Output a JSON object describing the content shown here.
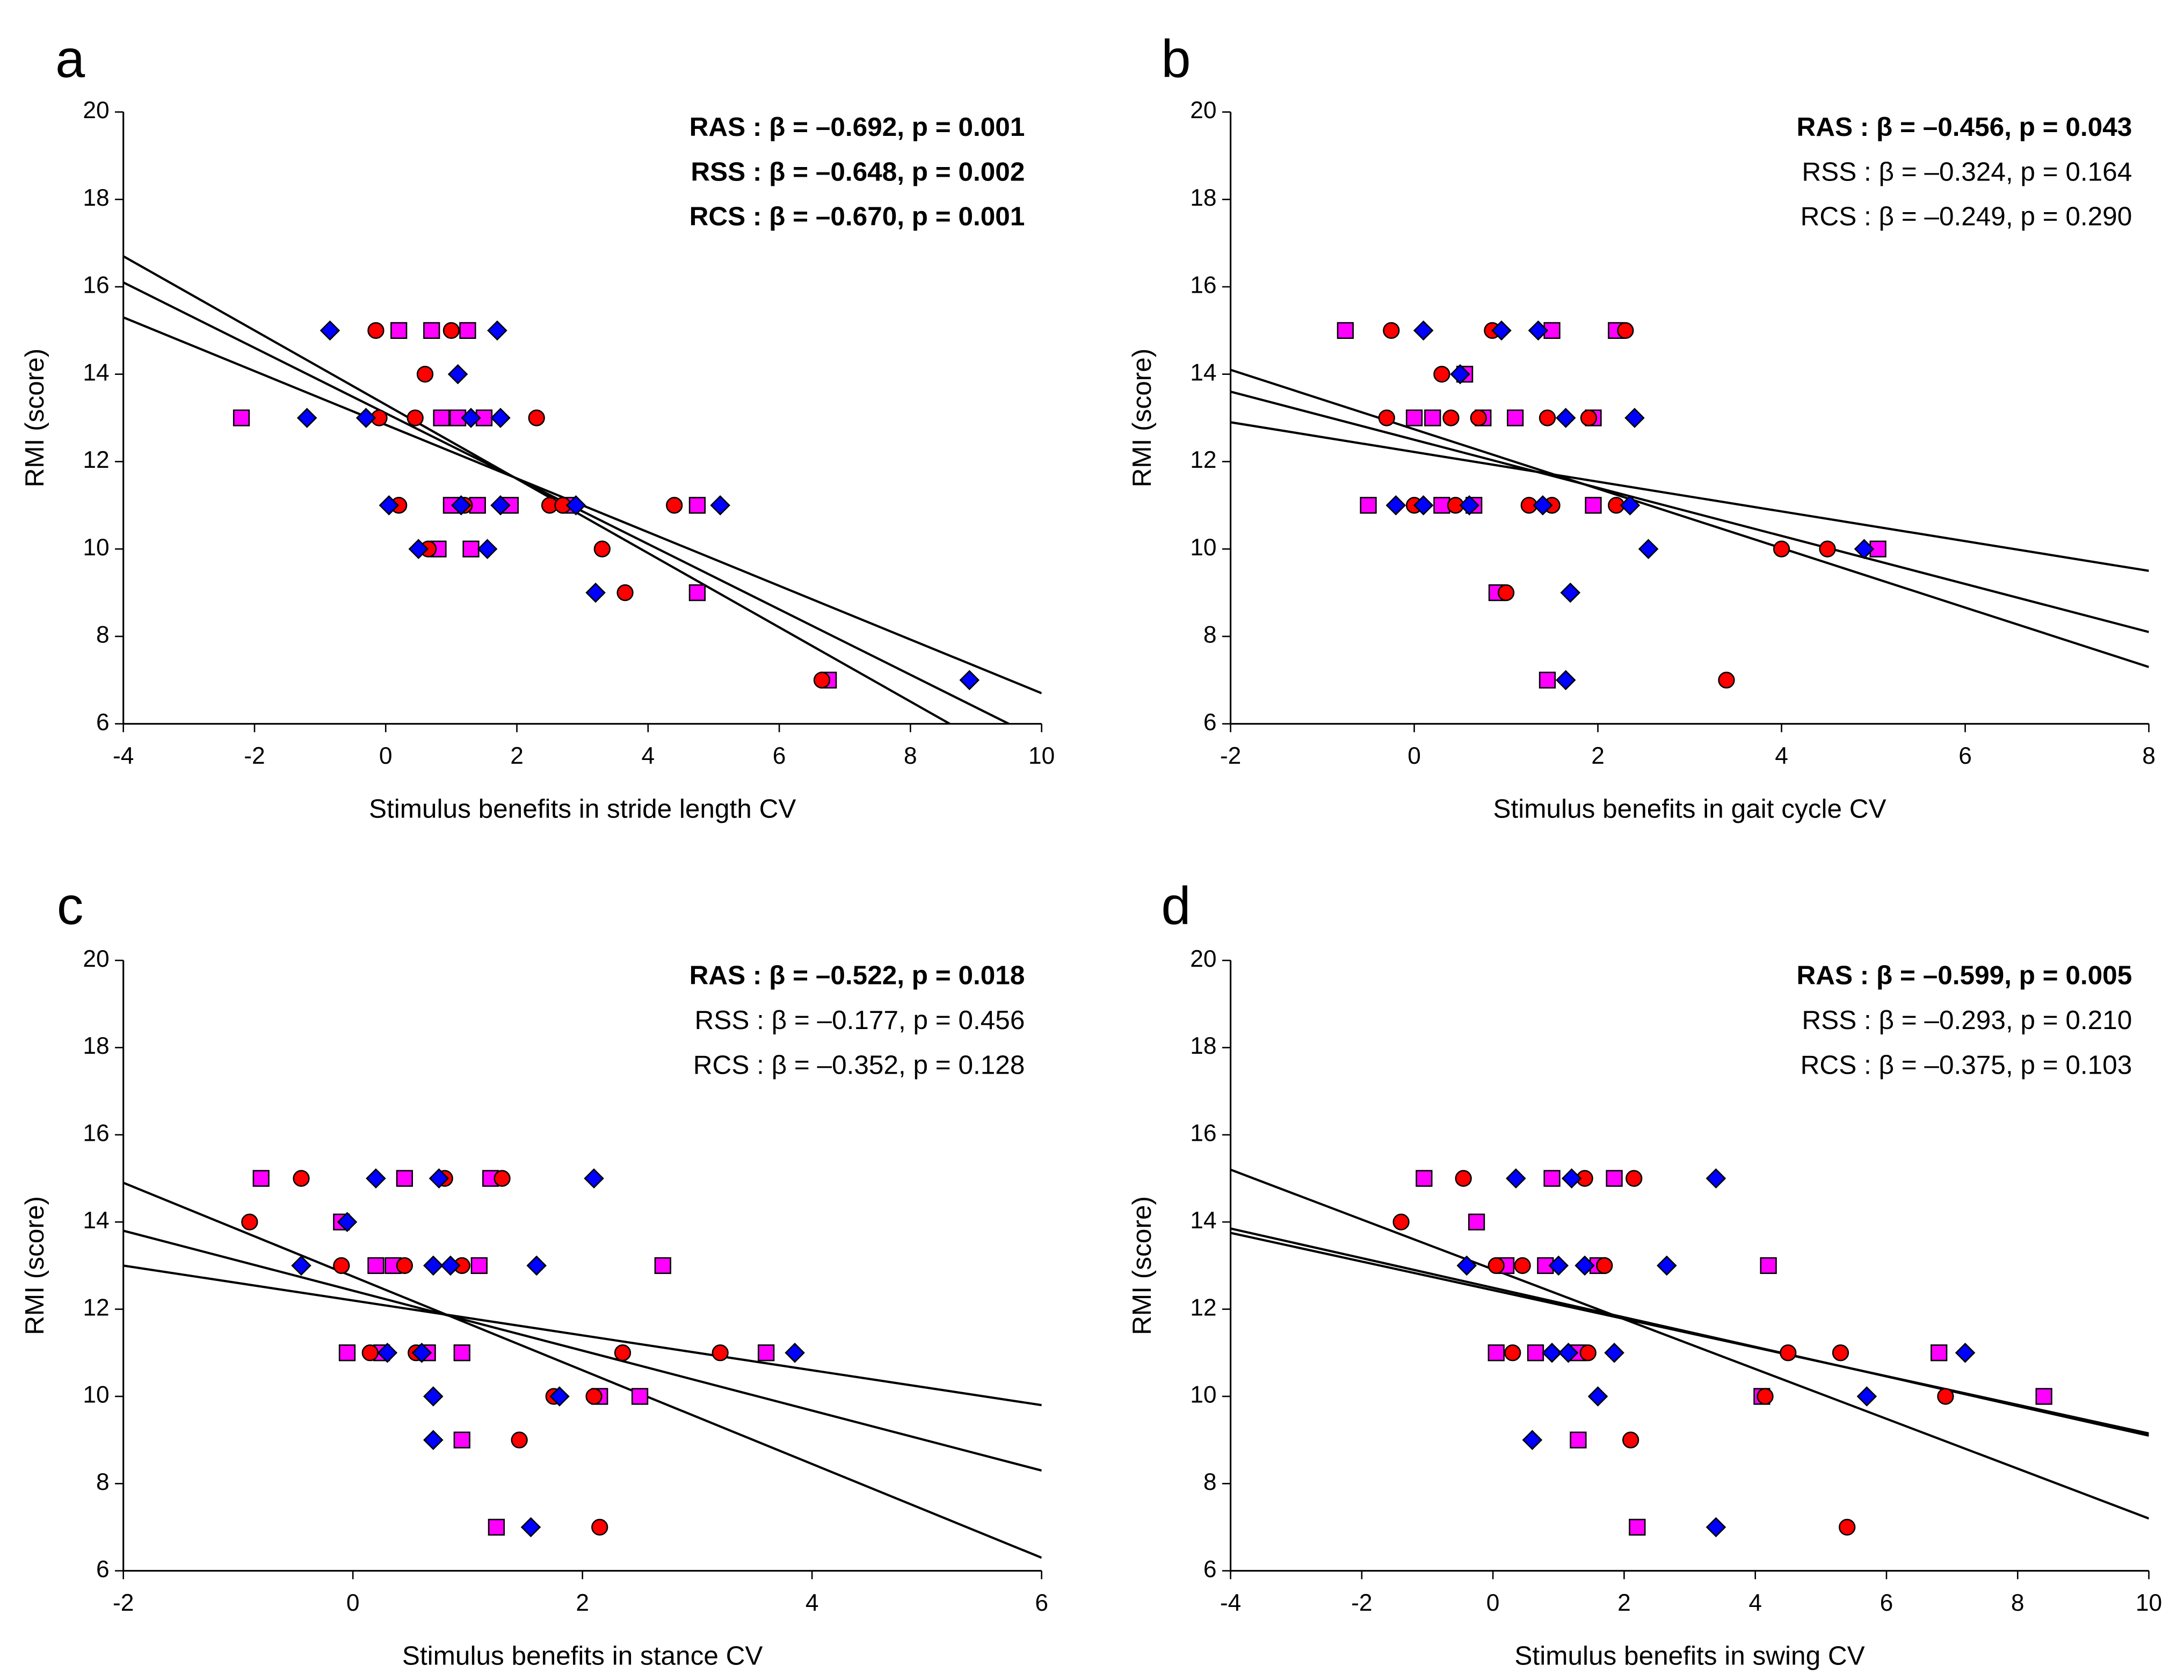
{
  "chart_data": [
    {
      "type": "scatter",
      "panel_label": "a",
      "xlabel": "Stimulus benefits in stride length CV",
      "ylabel": "RMI (score)",
      "xlim": [
        -4,
        10
      ],
      "xticks": [
        -4,
        -2,
        0,
        2,
        4,
        6,
        8,
        10
      ],
      "ylim": [
        6,
        20
      ],
      "yticks": [
        6,
        8,
        10,
        12,
        14,
        16,
        18,
        20
      ],
      "annotations": [
        {
          "text": "RAS : β  = –0.692, p = 0.001",
          "bold": true
        },
        {
          "text": "RSS : β  = –0.648, p = 0.002",
          "bold": true
        },
        {
          "text": "RCS : β  = –0.670, p = 0.001",
          "bold": true
        }
      ],
      "series": [
        {
          "color": "#ff00ff",
          "marker": "square",
          "x": [
            0.2,
            0.7,
            1.25,
            -2.2,
            0.85,
            1.1,
            1.5,
            1.0,
            1.4,
            1.9,
            2.8,
            4.75,
            0.8,
            1.3,
            4.75,
            6.75
          ],
          "values": [
            15,
            15,
            15,
            13,
            13,
            13,
            13,
            11,
            11,
            11,
            11,
            11,
            10,
            10,
            9,
            7
          ]
        },
        {
          "color": "#ff0000",
          "marker": "circle",
          "x": [
            -0.15,
            1.0,
            0.6,
            -0.1,
            0.45,
            2.3,
            0.2,
            1.2,
            2.5,
            2.7,
            4.4,
            0.65,
            3.3,
            3.65,
            6.65
          ],
          "values": [
            15,
            15,
            14,
            13,
            13,
            13,
            11,
            11,
            11,
            11,
            11,
            10,
            10,
            9,
            7
          ]
        },
        {
          "color": "#0000ff",
          "marker": "diamond",
          "x": [
            -0.85,
            1.7,
            1.1,
            -1.2,
            -0.3,
            1.75,
            1.3,
            0.05,
            1.15,
            1.75,
            2.9,
            5.1,
            0.5,
            1.55,
            3.2,
            8.9
          ],
          "values": [
            15,
            15,
            14,
            13,
            13,
            13,
            13,
            11,
            11,
            11,
            11,
            11,
            10,
            10,
            9,
            7
          ]
        }
      ],
      "fit_lines": [
        {
          "x": [
            -4,
            8.6
          ],
          "y": [
            16.7,
            6
          ]
        },
        {
          "x": [
            -4,
            9.5
          ],
          "y": [
            16.1,
            6
          ]
        },
        {
          "x": [
            -4,
            10
          ],
          "y": [
            15.3,
            6.7
          ]
        }
      ]
    },
    {
      "type": "scatter",
      "panel_label": "b",
      "xlabel": "Stimulus benefits in gait cycle CV",
      "ylabel": "RMI (score)",
      "xlim": [
        -2,
        8
      ],
      "xticks": [
        -2,
        0,
        2,
        4,
        6,
        8
      ],
      "ylim": [
        6,
        20
      ],
      "yticks": [
        6,
        8,
        10,
        12,
        14,
        16,
        18,
        20
      ],
      "annotations": [
        {
          "text": "RAS : β  = –0.456, p = 0.043",
          "bold": true
        },
        {
          "text": "RSS : β  = –0.324, p = 0.164",
          "bold": false
        },
        {
          "text": "RCS : β  = –0.249, p = 0.290",
          "bold": false
        }
      ],
      "series": [
        {
          "color": "#ff00ff",
          "marker": "square",
          "x": [
            -0.75,
            1.5,
            2.2,
            0.55,
            0.0,
            0.2,
            0.75,
            1.1,
            1.95,
            -0.5,
            0.3,
            0.65,
            1.95,
            5.05,
            0.9,
            1.45
          ],
          "values": [
            15,
            15,
            15,
            14,
            13,
            13,
            13,
            13,
            13,
            11,
            11,
            11,
            11,
            10,
            9,
            7
          ]
        },
        {
          "color": "#ff0000",
          "marker": "circle",
          "x": [
            -0.25,
            0.85,
            2.3,
            0.3,
            -0.3,
            0.4,
            0.7,
            1.45,
            1.9,
            0.0,
            0.45,
            1.25,
            1.5,
            2.2,
            4.0,
            4.5,
            1.0,
            3.4
          ],
          "values": [
            15,
            15,
            15,
            14,
            13,
            13,
            13,
            13,
            13,
            11,
            11,
            11,
            11,
            11,
            10,
            10,
            9,
            7
          ]
        },
        {
          "color": "#0000ff",
          "marker": "diamond",
          "x": [
            0.1,
            0.95,
            1.35,
            0.5,
            1.65,
            2.4,
            -0.2,
            0.1,
            0.6,
            1.4,
            2.35,
            2.55,
            4.9,
            1.7,
            1.65
          ],
          "values": [
            15,
            15,
            15,
            14,
            13,
            13,
            11,
            11,
            11,
            11,
            11,
            10,
            10,
            9,
            7
          ]
        }
      ],
      "fit_lines": [
        {
          "x": [
            -2,
            8
          ],
          "y": [
            14.1,
            7.3
          ]
        },
        {
          "x": [
            -2,
            8
          ],
          "y": [
            13.6,
            8.1
          ]
        },
        {
          "x": [
            -2,
            8
          ],
          "y": [
            12.9,
            9.5
          ]
        }
      ]
    },
    {
      "type": "scatter",
      "panel_label": "c",
      "xlabel": "Stimulus benefits in stance CV",
      "ylabel": "RMI (score)",
      "xlim": [
        -2,
        6
      ],
      "xticks": [
        -2,
        0,
        2,
        4,
        6
      ],
      "ylim": [
        6,
        20
      ],
      "yticks": [
        6,
        8,
        10,
        12,
        14,
        16,
        18,
        20
      ],
      "annotations": [
        {
          "text": "RAS : β  = –0.522, p = 0.018",
          "bold": true
        },
        {
          "text": "RSS : β  = –0.177, p = 0.456",
          "bold": false
        },
        {
          "text": "RCS : β  = –0.352, p = 0.128",
          "bold": false
        }
      ],
      "series": [
        {
          "color": "#ff00ff",
          "marker": "square",
          "x": [
            -0.8,
            0.45,
            1.2,
            -0.1,
            0.2,
            0.35,
            1.1,
            2.7,
            -0.05,
            0.25,
            0.65,
            0.95,
            3.6,
            2.15,
            2.5,
            0.95,
            1.25
          ],
          "values": [
            15,
            15,
            15,
            14,
            13,
            13,
            13,
            13,
            11,
            11,
            11,
            11,
            11,
            10,
            10,
            9,
            7
          ]
        },
        {
          "color": "#ff0000",
          "marker": "circle",
          "x": [
            -0.45,
            0.8,
            1.3,
            -0.9,
            -0.1,
            0.45,
            0.95,
            0.15,
            0.55,
            2.35,
            3.2,
            1.75,
            2.1,
            1.45,
            2.15
          ],
          "values": [
            15,
            15,
            15,
            14,
            13,
            13,
            13,
            11,
            11,
            11,
            11,
            10,
            10,
            9,
            7
          ]
        },
        {
          "color": "#0000ff",
          "marker": "diamond",
          "x": [
            0.2,
            0.75,
            2.1,
            -0.05,
            -0.45,
            0.7,
            0.85,
            1.6,
            0.3,
            0.6,
            3.85,
            0.7,
            1.8,
            0.7,
            1.55
          ],
          "values": [
            15,
            15,
            15,
            14,
            13,
            13,
            13,
            13,
            11,
            11,
            11,
            10,
            10,
            9,
            7
          ]
        }
      ],
      "fit_lines": [
        {
          "x": [
            -2,
            6
          ],
          "y": [
            14.9,
            6.3
          ]
        },
        {
          "x": [
            -2,
            6
          ],
          "y": [
            13.8,
            8.3
          ]
        },
        {
          "x": [
            -2,
            6
          ],
          "y": [
            13.0,
            9.8
          ]
        }
      ]
    },
    {
      "type": "scatter",
      "panel_label": "d",
      "xlabel": "Stimulus benefits in swing CV",
      "ylabel": "RMI (score)",
      "xlim": [
        -4,
        10
      ],
      "xticks": [
        -4,
        -2,
        0,
        2,
        4,
        6,
        8,
        10
      ],
      "ylim": [
        6,
        20
      ],
      "yticks": [
        6,
        8,
        10,
        12,
        14,
        16,
        18,
        20
      ],
      "annotations": [
        {
          "text": "RAS : β  = –0.599, p = 0.005",
          "bold": true
        },
        {
          "text": "RSS : β  = –0.293, p = 0.210",
          "bold": false
        },
        {
          "text": "RCS : β  = –0.375, p = 0.103",
          "bold": false
        }
      ],
      "series": [
        {
          "color": "#ff00ff",
          "marker": "square",
          "x": [
            -1.05,
            0.9,
            1.85,
            -0.25,
            0.2,
            0.8,
            1.6,
            4.2,
            0.05,
            0.65,
            1.3,
            6.8,
            4.1,
            8.4,
            1.3,
            2.2
          ],
          "values": [
            15,
            15,
            15,
            14,
            13,
            13,
            13,
            13,
            11,
            11,
            11,
            11,
            10,
            10,
            9,
            7
          ]
        },
        {
          "color": "#ff0000",
          "marker": "circle",
          "x": [
            -0.45,
            1.4,
            2.15,
            -1.4,
            0.05,
            0.45,
            1.7,
            0.3,
            1.45,
            4.5,
            5.3,
            4.15,
            6.9,
            2.1,
            5.4
          ],
          "values": [
            15,
            15,
            15,
            14,
            13,
            13,
            13,
            11,
            11,
            11,
            11,
            10,
            10,
            9,
            7
          ]
        },
        {
          "color": "#0000ff",
          "marker": "diamond",
          "x": [
            0.35,
            1.2,
            3.4,
            -0.4,
            1.0,
            1.4,
            2.65,
            0.9,
            1.15,
            1.85,
            7.2,
            1.6,
            5.7,
            0.6,
            3.4
          ],
          "values": [
            15,
            15,
            15,
            13,
            13,
            13,
            13,
            11,
            11,
            11,
            11,
            10,
            10,
            9,
            7
          ]
        }
      ],
      "fit_lines": [
        {
          "x": [
            -4,
            10
          ],
          "y": [
            15.2,
            7.2
          ]
        },
        {
          "x": [
            -4,
            10
          ],
          "y": [
            13.85,
            9.1
          ]
        },
        {
          "x": [
            -4,
            10
          ],
          "y": [
            13.75,
            9.15
          ]
        }
      ]
    }
  ]
}
